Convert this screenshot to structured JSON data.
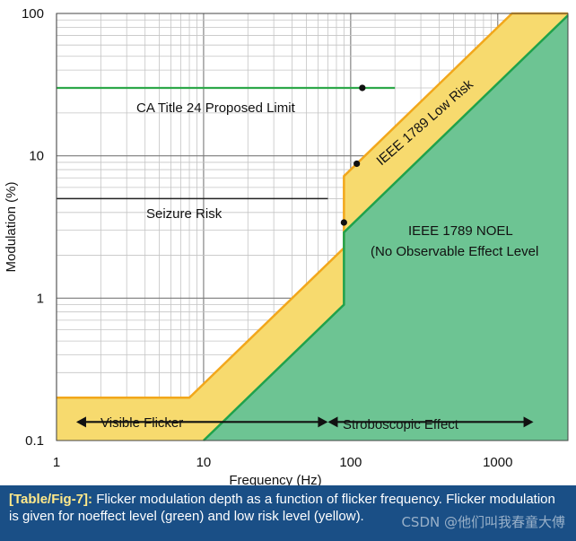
{
  "chart_data": {
    "type": "area",
    "title": "",
    "xlabel": "Frequency (Hz)",
    "ylabel": "Modulation (%)",
    "xscale": "log",
    "yscale": "log",
    "xlim": [
      1,
      3000
    ],
    "ylim": [
      0.1,
      100
    ],
    "x_ticks": [
      "1",
      "10",
      "100",
      "1000"
    ],
    "y_ticks": [
      "0.1",
      "1",
      "10",
      "100"
    ],
    "grid": true,
    "colors": {
      "low_risk_fill": "#f7da6e",
      "low_risk_line": "#f2a71b",
      "noel_fill": "#6dc493",
      "noel_line": "#1fa24b",
      "limit_line": "#2ea84a"
    },
    "series": [
      {
        "name": "IEEE 1789 Low Risk",
        "x": [
          1,
          8,
          90,
          90,
          1250,
          3000
        ],
        "y": [
          0.2,
          0.2,
          2.25,
          7.2,
          100,
          100
        ]
      },
      {
        "name": "IEEE 1789 NOEL",
        "x": [
          10,
          90,
          90,
          3000
        ],
        "y": [
          0.1,
          0.9,
          2.9,
          97
        ]
      }
    ],
    "reference_lines": [
      {
        "label": "CA Title 24 Proposed Limit",
        "x": [
          1,
          200
        ],
        "y": [
          30,
          30
        ]
      },
      {
        "label": "Seizure Risk",
        "x": [
          1,
          70
        ],
        "y": [
          5,
          5
        ]
      }
    ],
    "points": [
      {
        "x": 120,
        "y": 30
      },
      {
        "x": 110,
        "y": 8.8
      },
      {
        "x": 90,
        "y": 3.4
      }
    ],
    "range_annotations": [
      {
        "label": "Visible Flicker",
        "from": 1.4,
        "to": 70
      },
      {
        "label": "Stroboscopic Effect",
        "from": 70,
        "to": 1700
      }
    ],
    "region_labels": {
      "low_risk": "IEEE 1789 Low Risk",
      "noel_line1": "IEEE 1789 NOEL",
      "noel_line2": "(No Observable Effect Level"
    }
  },
  "caption": {
    "tag": "[Table/Fig-7]:",
    "text": "Flicker modulation depth as a function of flicker frequency. Flicker modulation is given for noeffect level (green) and low risk level (yellow)."
  },
  "watermark": "CSDN @他们叫我春童大傅"
}
